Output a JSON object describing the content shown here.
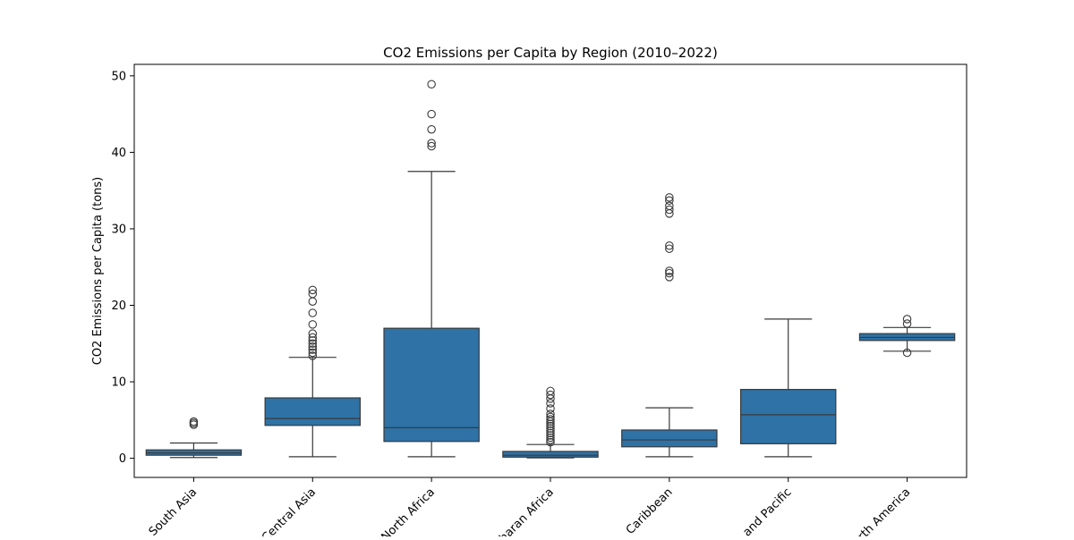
{
  "chart_data": {
    "type": "box",
    "title": "CO2 Emissions per Capita by Region (2010–2022)",
    "xlabel": "",
    "ylabel": "CO2 Emissions per Capita (tons)",
    "ylim": [
      -2.5,
      51.5
    ],
    "yticks": [
      0,
      10,
      20,
      30,
      40,
      50
    ],
    "grid": false,
    "box_color": "#2e72a6",
    "line_color": "#3a3a3a",
    "categories": [
      "South Asia",
      "Europe & Central Asia",
      "Middle East & North Africa",
      "Sub-Saharan Africa",
      "Latin America & Caribbean",
      "East Asia and Pacific",
      "North America"
    ],
    "tick_labels_visible": [
      "South Asia",
      "Central Asia",
      "North Africa",
      "Saharan Africa",
      "Caribbean",
      "and Pacific",
      "rth America"
    ],
    "boxes": [
      {
        "category": "South Asia",
        "whisker_low": 0.1,
        "q1": 0.4,
        "median": 0.7,
        "q3": 1.1,
        "whisker_high": 2.0,
        "outliers": [
          4.4,
          4.6,
          4.8
        ]
      },
      {
        "category": "Europe & Central Asia",
        "whisker_low": 0.2,
        "q1": 4.3,
        "median": 5.2,
        "q3": 7.9,
        "whisker_high": 13.2,
        "outliers": [
          13.4,
          13.8,
          14.2,
          14.6,
          15.0,
          15.4,
          15.8,
          16.3,
          17.5,
          19.0,
          20.5,
          21.5,
          22.0
        ]
      },
      {
        "category": "Middle East & North Africa",
        "whisker_low": 0.2,
        "q1": 2.2,
        "median": 4.0,
        "q3": 17.0,
        "whisker_high": 37.5,
        "outliers": [
          40.8,
          41.2,
          43.0,
          45.0,
          48.9
        ]
      },
      {
        "category": "Sub-Saharan Africa",
        "whisker_low": 0.05,
        "q1": 0.15,
        "median": 0.4,
        "q3": 0.9,
        "whisker_high": 1.8,
        "outliers": [
          2.1,
          2.4,
          2.7,
          3.0,
          3.3,
          3.6,
          3.9,
          4.2,
          4.5,
          4.8,
          5.1,
          5.4,
          5.8,
          6.5,
          7.2,
          7.8,
          8.3,
          8.8
        ]
      },
      {
        "category": "Latin America & Caribbean",
        "whisker_low": 0.2,
        "q1": 1.5,
        "median": 2.4,
        "q3": 3.7,
        "whisker_high": 6.6,
        "outliers": [
          23.7,
          24.2,
          24.5,
          27.4,
          27.8,
          32.0,
          32.5,
          33.0,
          33.7,
          34.1
        ]
      },
      {
        "category": "East Asia and Pacific",
        "whisker_low": 0.2,
        "q1": 1.9,
        "median": 5.7,
        "q3": 9.0,
        "whisker_high": 18.2,
        "outliers": []
      },
      {
        "category": "North America",
        "whisker_low": 14.0,
        "q1": 15.4,
        "median": 15.8,
        "q3": 16.3,
        "whisker_high": 17.1,
        "outliers": [
          13.8,
          17.6,
          18.2
        ]
      }
    ]
  }
}
